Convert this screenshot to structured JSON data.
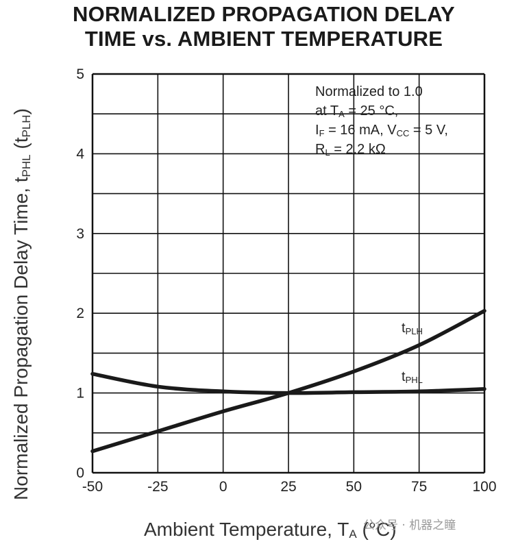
{
  "chart_data": {
    "type": "line",
    "title": "NORMALIZED PROPAGATION DELAY",
    "subtitle": "TIME vs. AMBIENT TEMPERATURE",
    "xlabel": "Ambient Temperature, TA (°C)",
    "xlabel_main": "Ambient Temperature, T",
    "xlabel_sub": "A",
    "xlabel_tail": " (°C)",
    "ylabel": "Normalized Propagation Delay Time, tPHL (tPLH)",
    "ylabel_main": "Normalized Propagation Delay Time, t",
    "ylabel_sub1": "PHL",
    "ylabel_mid": " (t",
    "ylabel_sub2": "PLH",
    "ylabel_tail": ")",
    "xlim": [
      -50,
      100
    ],
    "ylim": [
      0,
      5
    ],
    "x_ticks": [
      "-50",
      "-25",
      "0",
      "25",
      "50",
      "75",
      "100"
    ],
    "y_ticks": [
      "0",
      "1",
      "2",
      "3",
      "4",
      "5"
    ],
    "grid": true,
    "x": [
      -50,
      -25,
      0,
      25,
      50,
      75,
      100
    ],
    "series": [
      {
        "name": "tPLH",
        "label_main": "t",
        "label_sub": "PLH",
        "values": [
          0.27,
          0.52,
          0.77,
          1.0,
          1.27,
          1.6,
          2.03
        ]
      },
      {
        "name": "tPHL",
        "label_main": "t",
        "label_sub": "PHL",
        "values": [
          1.24,
          1.08,
          1.02,
          1.0,
          1.01,
          1.02,
          1.05
        ]
      }
    ],
    "annotation": {
      "line1": "Normalized to 1.0",
      "line2_main": "at T",
      "line2_sub": "A",
      "line2_tail": " = 25 °C,",
      "line3_a": "I",
      "line3_a_sub": "F",
      "line3_b": " = 16 mA, V",
      "line3_b_sub": "CC",
      "line3_c": " = 5 V,",
      "line4_a": "R",
      "line4_a_sub": "L",
      "line4_b": " = 2.2 kΩ"
    }
  },
  "watermark": "公众号 · 机器之瞳",
  "colors": {
    "curve": "#1a1a1a",
    "grid": "#111111",
    "text": "#222222"
  }
}
